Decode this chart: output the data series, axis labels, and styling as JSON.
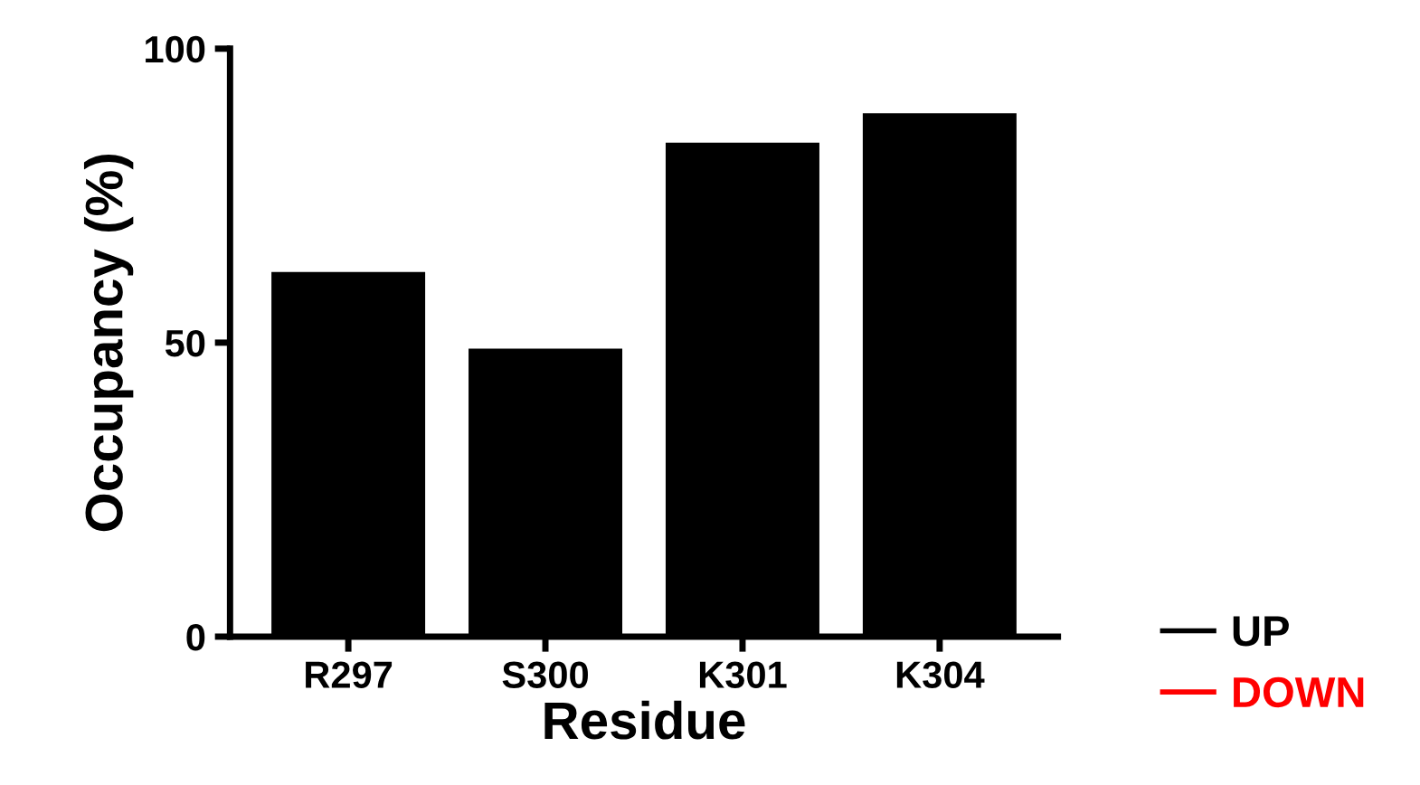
{
  "chart_data": {
    "type": "bar",
    "xlabel": "Residue",
    "ylabel": "Occupancy (%)",
    "categories": [
      "R297",
      "S300",
      "K301",
      "K304"
    ],
    "series": [
      {
        "name": "UP",
        "color": "#000000",
        "values": [
          62,
          49,
          84,
          89
        ]
      },
      {
        "name": "DOWN",
        "color": "#ff0000",
        "values": [
          null,
          null,
          null,
          null
        ]
      }
    ],
    "ylim": [
      0,
      100
    ],
    "yticks": [
      0,
      50,
      100
    ],
    "grid": false,
    "legend": "bottom right"
  }
}
